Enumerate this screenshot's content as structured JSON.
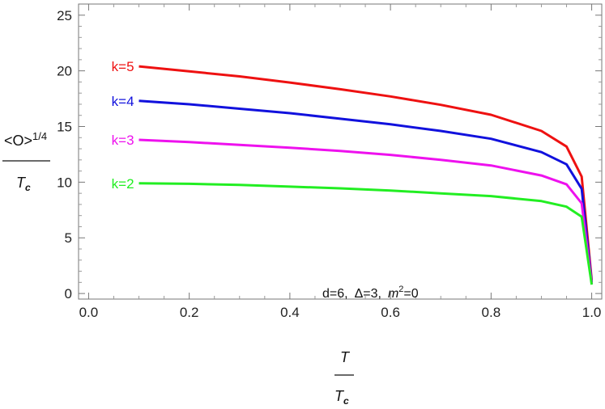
{
  "chart_data": {
    "type": "line",
    "xlim": [
      -0.02,
      1.02
    ],
    "ylim": [
      -0.5,
      26
    ],
    "x_ticks": [
      "0.0",
      "0.2",
      "0.4",
      "0.6",
      "0.8",
      "1.0"
    ],
    "y_ticks": [
      "0",
      "5",
      "10",
      "15",
      "20",
      "25"
    ],
    "xlabel": {
      "num": "T",
      "den_main": "T",
      "den_sub": "c"
    },
    "ylabel": {
      "num_main": "<O>",
      "num_sup": "1/4",
      "den_main": "T",
      "den_sub": "c"
    },
    "annotation": {
      "d": "d=6,",
      "delta": "Δ=3,",
      "m_main": "m",
      "m_sup": "2",
      "m_eq": "=0"
    },
    "series": [
      {
        "name": "k=5",
        "color": "#ee1111",
        "start": [
          0.1,
          20.4
        ],
        "x": [
          0.1,
          0.2,
          0.3,
          0.4,
          0.5,
          0.6,
          0.7,
          0.8,
          0.9,
          0.95,
          0.98,
          1.0
        ],
        "y": [
          20.4,
          19.95,
          19.5,
          18.95,
          18.35,
          17.7,
          16.95,
          16.05,
          14.6,
          13.2,
          10.5,
          1.2
        ]
      },
      {
        "name": "k=4",
        "color": "#1111dd",
        "start": [
          0.1,
          17.3
        ],
        "x": [
          0.1,
          0.2,
          0.3,
          0.4,
          0.5,
          0.6,
          0.7,
          0.8,
          0.9,
          0.95,
          0.98,
          1.0
        ],
        "y": [
          17.3,
          17.0,
          16.6,
          16.2,
          15.7,
          15.2,
          14.6,
          13.9,
          12.7,
          11.6,
          9.4,
          1.0
        ]
      },
      {
        "name": "k=3",
        "color": "#ee11ee",
        "start": [
          0.1,
          13.8
        ],
        "x": [
          0.1,
          0.2,
          0.3,
          0.4,
          0.5,
          0.6,
          0.7,
          0.8,
          0.9,
          0.95,
          0.98,
          1.0
        ],
        "y": [
          13.8,
          13.6,
          13.35,
          13.1,
          12.8,
          12.45,
          12.0,
          11.5,
          10.6,
          9.8,
          8.1,
          0.9
        ]
      },
      {
        "name": "k=2",
        "color": "#22ee22",
        "start": [
          0.1,
          9.9
        ],
        "x": [
          0.1,
          0.2,
          0.3,
          0.4,
          0.5,
          0.6,
          0.7,
          0.8,
          0.9,
          0.95,
          0.98,
          1.0
        ],
        "y": [
          9.9,
          9.85,
          9.75,
          9.6,
          9.45,
          9.25,
          9.0,
          8.75,
          8.3,
          7.8,
          6.9,
          0.8
        ]
      }
    ]
  }
}
